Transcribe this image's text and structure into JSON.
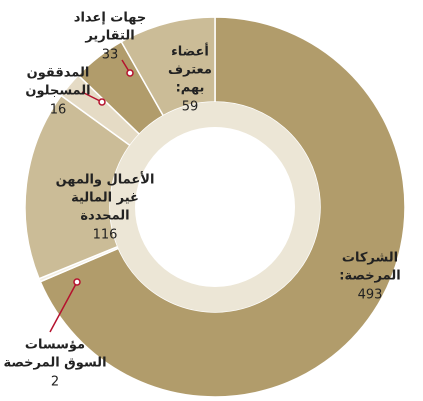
{
  "chart_data": {
    "type": "donut",
    "categories": [
      [
        "الشركات",
        "المرخصة:"
      ],
      [
        "مؤسسات",
        "السوق المرخصة"
      ],
      [
        "الأعمال والمهن",
        "غير المالية",
        "المحددة"
      ],
      [
        "المدققون",
        "المسجلون"
      ],
      [
        "جهات إعداد",
        "التقارير"
      ],
      [
        "أعضاء",
        "معترف",
        "بهم:"
      ]
    ],
    "values": [
      493,
      2,
      116,
      16,
      33,
      59
    ],
    "colors": [
      "#b19c6b",
      "#f3eee2",
      "#cbbc97",
      "#e5dbc5",
      "#b19c6b",
      "#cbbc97"
    ]
  }
}
